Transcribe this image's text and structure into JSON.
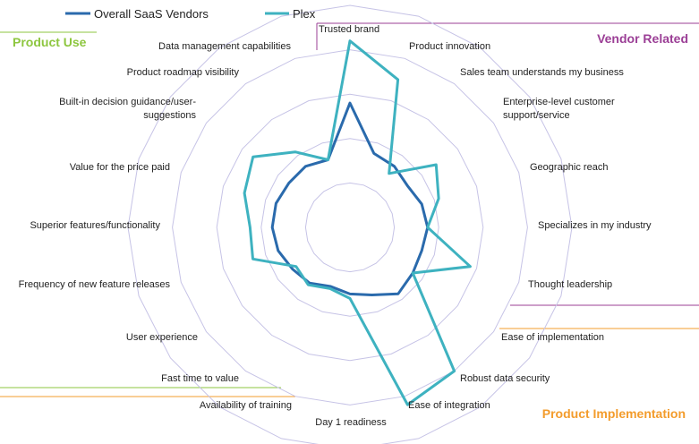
{
  "chart_data": {
    "type": "radar",
    "axes": [
      "Trusted brand",
      "Product innovation",
      "Sales team understands my business",
      "Enterprise-level customer support/service",
      "Geographic reach",
      "Specializes in my industry",
      "Thought leadership",
      "Ease of implementation",
      "Robust data security",
      "Ease of integration",
      "Day 1 readiness",
      "Availability of training",
      "Fast time to value",
      "User experience",
      "Frequency of new feature releases",
      "Superior features/functionality",
      "Value for the price paid",
      "Built-in decision guidance/user-suggestions",
      "Product roadmap visibility",
      "Data management capabilities"
    ],
    "rmax": 5,
    "rings": 5,
    "series": [
      {
        "name": "Overall SaaS Vendors",
        "color": "#2a6aac",
        "values": [
          2.8,
          1.75,
          1.7,
          1.6,
          1.7,
          1.75,
          1.7,
          1.75,
          1.85,
          1.6,
          1.5,
          1.4,
          1.55,
          1.6,
          1.7,
          1.75,
          1.75,
          1.7,
          1.7,
          1.6
        ]
      },
      {
        "name": "Plex",
        "color": "#3eb2c0",
        "values": [
          4.2,
          3.5,
          1.5,
          2.4,
          2.1,
          1.75,
          2.85,
          1.75,
          4.0,
          4.2,
          1.6,
          1.45,
          1.6,
          1.5,
          2.3,
          2.25,
          2.5,
          2.7,
          2.1,
          1.6
        ]
      }
    ],
    "groups": [
      {
        "label": "Product Use",
        "color": "#8dc63f"
      },
      {
        "label": "Vendor Related",
        "color": "#9b3f96"
      },
      {
        "label": "Product Implementation",
        "color": "#f39c2c"
      }
    ]
  }
}
